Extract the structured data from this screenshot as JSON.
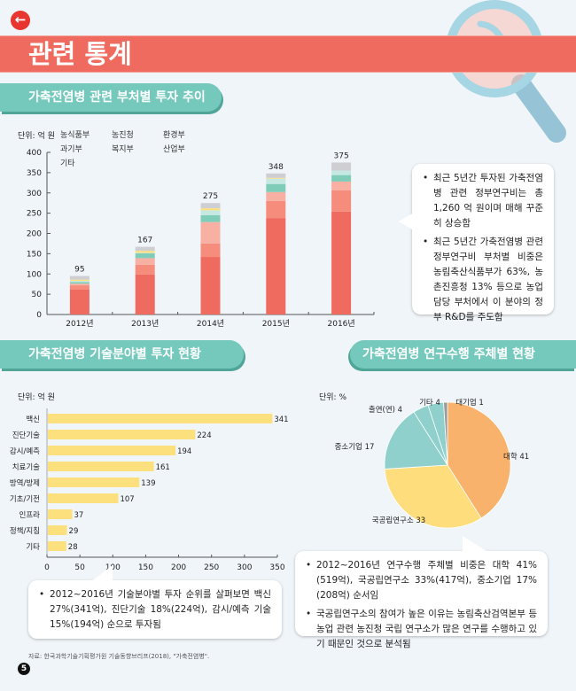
{
  "header": {
    "title": "관련 통계",
    "back_icon": "arrow-left-icon"
  },
  "section1": {
    "tab": "가축전염병 관련 부처별 투자 추이",
    "unit": "단위: 억 원",
    "callout": [
      "최근 5년간 투자된 가축전염병 관련 정부연구비는 총 1,260 억 원이며 매해 꾸준히 상승함",
      "최근 5년간 가축전염병 관련 정부연구비 부처별 비중은 농림축산식품부가 63%, 농촌진흥청 13% 등으로 농업 담당 부처에서 이 분야의 정부 R&D를 주도함"
    ]
  },
  "section2": {
    "tab": "가축전염병 기술분야별 투자 현황",
    "unit": "단위: 억 원",
    "callout": [
      "2012~2016년 기술분야별 투자 순위를 살펴보면 백신 27%(341억), 진단기술 18%(224억), 감시/예측 기술 15%(194억) 순으로 투자됨"
    ]
  },
  "section3": {
    "tab": "가축전염병 연구수행 주체별 현황",
    "unit": "단위: %",
    "callout": [
      "2012~2016년 연구수행 주체별 비중은 대학 41%(519억), 국공립연구소 33%(417억), 중소기업 17%(208억) 순서임",
      "국공립연구소의 참여가 높은 이유는 농림축산검역본부 등 농업 관련 농진청 국립 연구소가 많은 연구를 수행하고 있기 때문인 것으로 분석됨"
    ]
  },
  "footer": {
    "source": "자료: 한국과학기술기획평가원 기술동향브리프(2018), \"가축전염병\".",
    "page": "5"
  },
  "chart_data": [
    {
      "type": "bar",
      "stacked": true,
      "categories": [
        "2012년",
        "2013년",
        "2014년",
        "2015년",
        "2016년"
      ],
      "series": [
        {
          "name": "농식품부",
          "color": "#f06b5f",
          "values": [
            62,
            99,
            142,
            238,
            254
          ]
        },
        {
          "name": "농진청",
          "color": "#f58c7c",
          "values": [
            10,
            24,
            33,
            42,
            52
          ]
        },
        {
          "name": "환경부",
          "color": "#f8b0a3",
          "values": [
            4,
            16,
            53,
            22,
            22
          ]
        },
        {
          "name": "과기부",
          "color": "#7fcdb9",
          "values": [
            4,
            12,
            17,
            20,
            16
          ]
        },
        {
          "name": "복지부",
          "color": "#c6e8e2",
          "values": [
            3,
            1,
            12,
            13,
            11
          ]
        },
        {
          "name": "산업부",
          "color": "#fde07e",
          "values": [
            3,
            5,
            5,
            2,
            0
          ]
        },
        {
          "name": "기타",
          "color": "#cfcfd3",
          "values": [
            9,
            10,
            13,
            11,
            20
          ]
        }
      ],
      "totals": [
        95,
        167,
        275,
        348,
        375
      ],
      "yticks": [
        0,
        50,
        100,
        150,
        200,
        250,
        300,
        350,
        400
      ],
      "ylim": [
        0,
        400
      ],
      "legend": "top"
    },
    {
      "type": "bar",
      "orientation": "horizontal",
      "categories": [
        "백신",
        "진단기술",
        "감시/예측",
        "치료기술",
        "방역/방제",
        "기초/기전",
        "인프라",
        "정책/지침",
        "기타"
      ],
      "values": [
        341,
        224,
        194,
        161,
        139,
        107,
        37,
        29,
        28
      ],
      "color": "#fde07e",
      "xticks": [
        0,
        50,
        100,
        150,
        200,
        250,
        300,
        350
      ],
      "xlim": [
        0,
        350
      ]
    },
    {
      "type": "pie",
      "labels": [
        "대학",
        "국공립연구소",
        "중소기업",
        "출연(연)",
        "기타",
        "대기업"
      ],
      "values": [
        41,
        33,
        17,
        4,
        4,
        1
      ],
      "colors": [
        "#f9b26c",
        "#fddd7c",
        "#8fd0cc",
        "#8fd0cc",
        "#8fd0cc",
        "#9a9a9a"
      ]
    }
  ]
}
